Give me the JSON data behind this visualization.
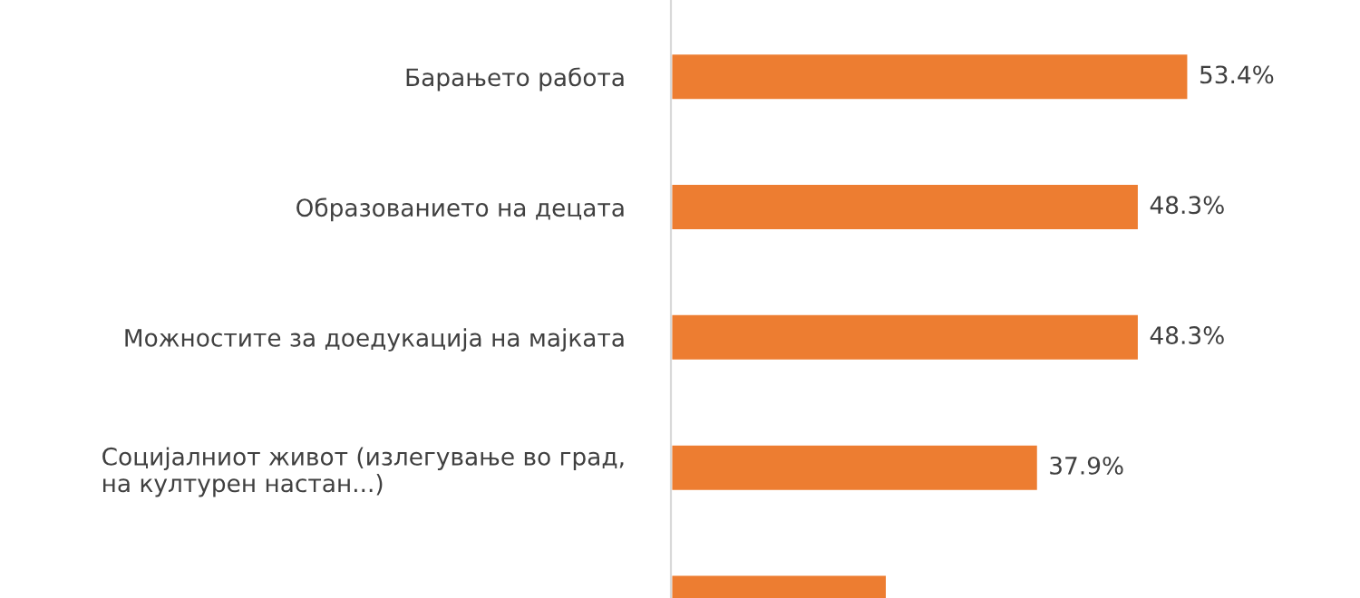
{
  "chart_data": {
    "type": "bar",
    "orientation": "horizontal",
    "categories": [
      "Барањето работа",
      "Образованието на децата",
      "Можностите за доедукација на мајката",
      "Социјалниот живот (излегување во град,\nна културен настан...)",
      null
    ],
    "values": [
      53.4,
      48.3,
      48.3,
      37.9,
      22.3
    ],
    "value_labels": [
      "53.4%",
      "48.3%",
      "48.3%",
      "37.9%",
      null
    ],
    "color": "#ed7d31",
    "grid": false,
    "legend": false
  }
}
